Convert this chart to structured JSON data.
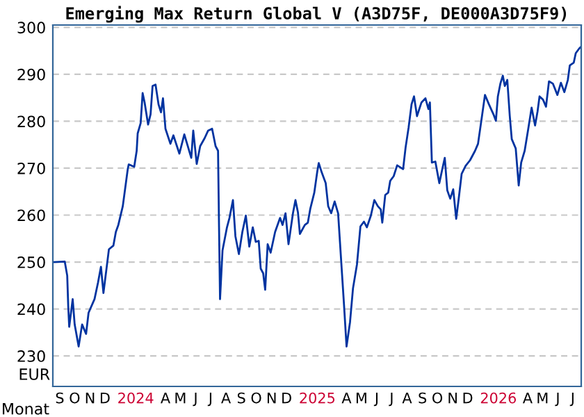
{
  "chart_data": {
    "type": "line",
    "title": "Emerging Max Return Global V (A3D75F, DE000A3D75F9)",
    "xlabel": "Monat",
    "ylabel": "EUR",
    "x": [
      "2023-09-04",
      "2023-09-25",
      "2023-09-30",
      "2023-10-02",
      "2023-10-04",
      "2023-10-11",
      "2023-10-15",
      "2023-10-23",
      "2023-10-30",
      "2023-11-07",
      "2023-11-12",
      "2023-11-24",
      "2023-12-01",
      "2023-12-07",
      "2023-12-12",
      "2023-12-23",
      "2024-01-01",
      "2024-01-06",
      "2024-01-11",
      "2024-01-20",
      "2024-01-30",
      "2024-02-01",
      "2024-02-12",
      "2024-02-17",
      "2024-02-19",
      "2024-02-25",
      "2024-02-29",
      "2024-03-04",
      "2024-03-11",
      "2024-03-16",
      "2024-03-20",
      "2024-03-26",
      "2024-04-01",
      "2024-04-06",
      "2024-04-10",
      "2024-04-15",
      "2024-04-25",
      "2024-05-01",
      "2024-05-13",
      "2024-05-23",
      "2024-06-06",
      "2024-06-10",
      "2024-06-17",
      "2024-06-24",
      "2024-07-03",
      "2024-07-10",
      "2024-07-18",
      "2024-07-25",
      "2024-07-30",
      "2024-08-01",
      "2024-08-03",
      "2024-08-08",
      "2024-08-17",
      "2024-08-22",
      "2024-08-29",
      "2024-09-03",
      "2024-09-10",
      "2024-09-17",
      "2024-09-24",
      "2024-10-01",
      "2024-10-08",
      "2024-10-14",
      "2024-10-20",
      "2024-10-24",
      "2024-10-29",
      "2024-11-02",
      "2024-11-07",
      "2024-11-13",
      "2024-11-22",
      "2024-12-02",
      "2024-12-07",
      "2024-12-13",
      "2024-12-19",
      "2024-12-28",
      "2025-01-02",
      "2025-01-07",
      "2025-01-11",
      "2025-01-21",
      "2025-01-27",
      "2025-02-01",
      "2025-02-09",
      "2025-02-15",
      "2025-02-18",
      "2025-02-24",
      "2025-03-04",
      "2025-03-09",
      "2025-03-15",
      "2025-03-22",
      "2025-03-29",
      "2025-04-04",
      "2025-04-10",
      "2025-04-15",
      "2025-04-22",
      "2025-04-28",
      "2025-05-06",
      "2025-05-13",
      "2025-05-20",
      "2025-05-26",
      "2025-06-03",
      "2025-06-10",
      "2025-06-17",
      "2025-06-23",
      "2025-06-26",
      "2025-07-02",
      "2025-07-08",
      "2025-07-12",
      "2025-07-19",
      "2025-07-26",
      "2025-08-07",
      "2025-08-12",
      "2025-08-18",
      "2025-08-24",
      "2025-08-29",
      "2025-09-04",
      "2025-09-13",
      "2025-09-21",
      "2025-09-27",
      "2025-09-30",
      "2025-10-04",
      "2025-10-11",
      "2025-10-19",
      "2025-10-25",
      "2025-10-30",
      "2025-11-04",
      "2025-11-10",
      "2025-11-16",
      "2025-11-22",
      "2025-11-27",
      "2025-12-03",
      "2025-12-11",
      "2025-12-20",
      "2025-12-30",
      "2026-01-05",
      "2026-01-13",
      "2026-01-19",
      "2026-01-27",
      "2026-02-05",
      "2026-02-10",
      "2026-02-14",
      "2026-02-19",
      "2026-02-24",
      "2026-02-28",
      "2026-03-05",
      "2026-03-10",
      "2026-03-14",
      "2026-03-22",
      "2026-03-28",
      "2026-04-02",
      "2026-04-09",
      "2026-04-16",
      "2026-04-23",
      "2026-04-30",
      "2026-05-05",
      "2026-05-09",
      "2026-05-16",
      "2026-05-22",
      "2026-05-28",
      "2026-06-05",
      "2026-06-14",
      "2026-06-21",
      "2026-06-28",
      "2026-07-05",
      "2026-07-09",
      "2026-07-17",
      "2026-07-21",
      "2026-07-28",
      "2026-07-31"
    ],
    "series": [
      {
        "color": "#0033a0",
        "values": [
          250.0,
          250.1,
          247.1,
          240.7,
          236.2,
          242.1,
          236.7,
          232.0,
          236.7,
          234.7,
          239.2,
          242.1,
          245.6,
          249.0,
          243.4,
          252.7,
          253.5,
          256.4,
          257.9,
          261.9,
          269.8,
          270.8,
          270.3,
          273.7,
          277.4,
          279.6,
          286.0,
          284.0,
          279.3,
          281.5,
          287.5,
          287.8,
          283.6,
          281.9,
          284.9,
          278.4,
          275.2,
          277.0,
          273.1,
          277.2,
          272.2,
          278.0,
          270.9,
          274.7,
          276.4,
          278.0,
          278.4,
          274.7,
          273.7,
          257.4,
          242.1,
          252.5,
          257.4,
          259.4,
          263.2,
          255.5,
          251.7,
          256.4,
          259.9,
          253.3,
          257.4,
          254.3,
          254.5,
          248.6,
          247.6,
          244.1,
          253.8,
          252.0,
          256.4,
          259.4,
          257.9,
          260.4,
          253.8,
          260.4,
          263.2,
          260.6,
          256.0,
          257.9,
          258.4,
          261.4,
          264.8,
          269.3,
          271.1,
          269.1,
          266.8,
          261.9,
          260.4,
          262.9,
          260.4,
          250.5,
          240.7,
          232.0,
          237.2,
          244.4,
          249.5,
          257.6,
          258.6,
          257.4,
          259.9,
          263.2,
          261.9,
          261.2,
          258.4,
          264.3,
          264.8,
          267.3,
          268.3,
          270.6,
          269.8,
          274.4,
          278.6,
          283.6,
          285.3,
          281.1,
          284.0,
          284.9,
          282.6,
          284.0,
          271.2,
          271.4,
          266.8,
          269.8,
          272.2,
          265.3,
          263.5,
          265.5,
          259.2,
          263.4,
          268.8,
          270.5,
          271.7,
          273.7,
          275.2,
          281.1,
          285.6,
          283.6,
          281.5,
          280.1,
          285.3,
          288.0,
          289.7,
          287.5,
          288.8,
          281.1,
          276.2,
          274.2,
          266.3,
          271.2,
          273.7,
          278.2,
          282.9,
          279.1,
          282.1,
          285.3,
          284.6,
          283.1,
          288.5,
          288.0,
          285.6,
          288.2,
          286.2,
          288.8,
          291.9,
          292.5,
          294.5,
          295.5,
          295.8
        ]
      }
    ],
    "xlim": [
      "2023-09-01",
      "2026-08-01"
    ],
    "ylim": [
      223.5,
      300.5
    ],
    "yticks": [
      230,
      240,
      250,
      260,
      270,
      280,
      290,
      300
    ],
    "xticks": [
      {
        "value": "2023-09-15",
        "label": "S"
      },
      {
        "value": "2023-10-15",
        "label": "O"
      },
      {
        "value": "2023-11-15",
        "label": "N"
      },
      {
        "value": "2023-12-15",
        "label": "D"
      },
      {
        "value": "2024-02-15",
        "label": "2024"
      },
      {
        "value": "2024-04-15",
        "label": "A"
      },
      {
        "value": "2024-05-15",
        "label": "M"
      },
      {
        "value": "2024-06-15",
        "label": "J"
      },
      {
        "value": "2024-07-15",
        "label": "J"
      },
      {
        "value": "2024-08-15",
        "label": "A"
      },
      {
        "value": "2024-09-15",
        "label": "S"
      },
      {
        "value": "2024-10-15",
        "label": "O"
      },
      {
        "value": "2024-11-15",
        "label": "N"
      },
      {
        "value": "2024-12-15",
        "label": "D"
      },
      {
        "value": "2025-02-15",
        "label": "2025"
      },
      {
        "value": "2025-04-15",
        "label": "A"
      },
      {
        "value": "2025-05-15",
        "label": "M"
      },
      {
        "value": "2025-06-15",
        "label": "J"
      },
      {
        "value": "2025-07-15",
        "label": "J"
      },
      {
        "value": "2025-08-15",
        "label": "A"
      },
      {
        "value": "2025-09-15",
        "label": "S"
      },
      {
        "value": "2025-10-15",
        "label": "O"
      },
      {
        "value": "2025-11-15",
        "label": "N"
      },
      {
        "value": "2025-12-15",
        "label": "D"
      },
      {
        "value": "2026-02-15",
        "label": "2026"
      },
      {
        "value": "2026-04-15",
        "label": "A"
      },
      {
        "value": "2026-05-15",
        "label": "M"
      },
      {
        "value": "2026-06-15",
        "label": "J"
      },
      {
        "value": "2026-07-15",
        "label": "J"
      }
    ],
    "grid": "y",
    "marker": "none",
    "line_style": "solid"
  }
}
